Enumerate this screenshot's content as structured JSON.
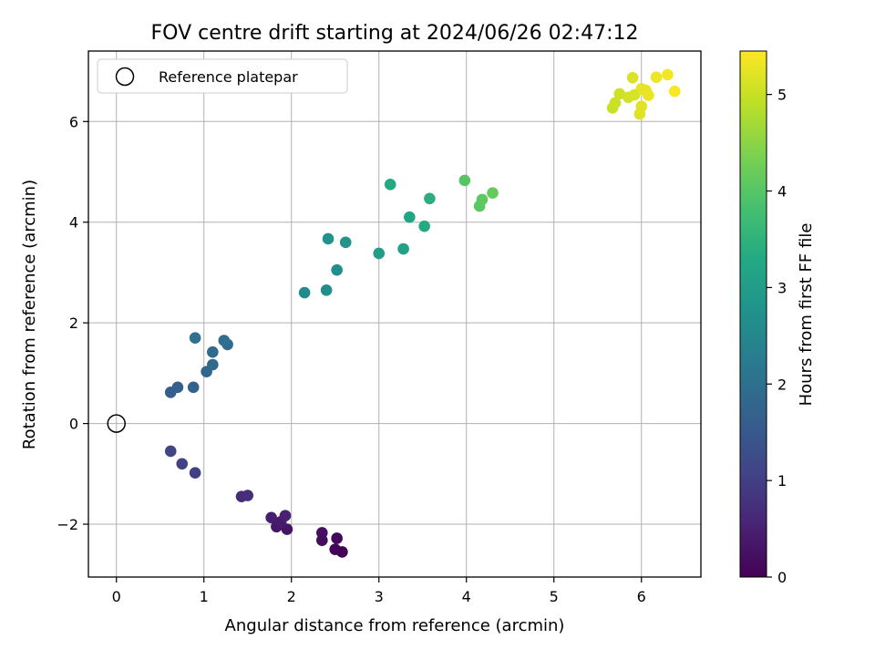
{
  "chart_data": {
    "type": "scatter",
    "title": "FOV centre drift starting at 2024/06/26 02:47:12",
    "xlabel": "Angular distance from reference (arcmin)",
    "ylabel": "Rotation from reference (arcmin)",
    "xlim": [
      -0.32,
      6.68
    ],
    "ylim": [
      -3.05,
      7.4
    ],
    "xticks": [
      0,
      1,
      2,
      3,
      4,
      5,
      6
    ],
    "yticks": [
      -2,
      0,
      2,
      4,
      6
    ],
    "grid": true,
    "legend": {
      "placement": "upper-left",
      "entries": [
        "Reference platepar"
      ]
    },
    "reference_point": {
      "x": 0,
      "y": 0,
      "label": "Reference platepar"
    },
    "colorbar": {
      "label": "Hours from first FF file",
      "range": [
        0,
        5.45
      ],
      "ticks": [
        0,
        1,
        2,
        3,
        4,
        5
      ],
      "colormap": "viridis"
    },
    "points": [
      {
        "x": 2.58,
        "y": -2.55,
        "c": 0.0
      },
      {
        "x": 2.5,
        "y": -2.5,
        "c": 0.05
      },
      {
        "x": 2.52,
        "y": -2.28,
        "c": 0.1
      },
      {
        "x": 2.35,
        "y": -2.32,
        "c": 0.15
      },
      {
        "x": 2.35,
        "y": -2.17,
        "c": 0.2
      },
      {
        "x": 1.95,
        "y": -2.1,
        "c": 0.3
      },
      {
        "x": 1.83,
        "y": -2.05,
        "c": 0.35
      },
      {
        "x": 1.88,
        "y": -1.95,
        "c": 0.4
      },
      {
        "x": 1.77,
        "y": -1.87,
        "c": 0.45
      },
      {
        "x": 1.93,
        "y": -1.83,
        "c": 0.5
      },
      {
        "x": 1.43,
        "y": -1.45,
        "c": 0.7
      },
      {
        "x": 1.5,
        "y": -1.43,
        "c": 0.72
      },
      {
        "x": 0.9,
        "y": -0.98,
        "c": 1.0
      },
      {
        "x": 0.75,
        "y": -0.8,
        "c": 1.05
      },
      {
        "x": 0.62,
        "y": -0.55,
        "c": 1.1
      },
      {
        "x": 0.62,
        "y": 0.62,
        "c": 1.6
      },
      {
        "x": 0.7,
        "y": 0.72,
        "c": 1.65
      },
      {
        "x": 0.88,
        "y": 0.72,
        "c": 1.7
      },
      {
        "x": 1.03,
        "y": 1.03,
        "c": 1.8
      },
      {
        "x": 1.1,
        "y": 1.17,
        "c": 1.85
      },
      {
        "x": 1.1,
        "y": 1.42,
        "c": 1.9
      },
      {
        "x": 1.27,
        "y": 1.57,
        "c": 1.95
      },
      {
        "x": 1.23,
        "y": 1.65,
        "c": 2.0
      },
      {
        "x": 0.9,
        "y": 1.7,
        "c": 2.0
      },
      {
        "x": 2.15,
        "y": 2.6,
        "c": 2.6
      },
      {
        "x": 2.4,
        "y": 2.65,
        "c": 2.65
      },
      {
        "x": 2.52,
        "y": 3.05,
        "c": 2.7
      },
      {
        "x": 2.42,
        "y": 3.67,
        "c": 2.75
      },
      {
        "x": 2.62,
        "y": 3.6,
        "c": 2.8
      },
      {
        "x": 3.0,
        "y": 3.38,
        "c": 3.0
      },
      {
        "x": 3.28,
        "y": 3.47,
        "c": 3.1
      },
      {
        "x": 3.35,
        "y": 4.1,
        "c": 3.2
      },
      {
        "x": 3.52,
        "y": 3.92,
        "c": 3.3
      },
      {
        "x": 3.13,
        "y": 4.75,
        "c": 3.3
      },
      {
        "x": 3.58,
        "y": 4.47,
        "c": 3.4
      },
      {
        "x": 3.98,
        "y": 4.83,
        "c": 4.0
      },
      {
        "x": 4.15,
        "y": 4.32,
        "c": 4.05
      },
      {
        "x": 4.18,
        "y": 4.45,
        "c": 4.1
      },
      {
        "x": 4.3,
        "y": 4.58,
        "c": 4.15
      },
      {
        "x": 5.67,
        "y": 6.27,
        "c": 5.0
      },
      {
        "x": 5.7,
        "y": 6.37,
        "c": 5.02
      },
      {
        "x": 5.75,
        "y": 6.55,
        "c": 5.05
      },
      {
        "x": 5.85,
        "y": 6.48,
        "c": 5.1
      },
      {
        "x": 5.92,
        "y": 6.53,
        "c": 5.12
      },
      {
        "x": 5.9,
        "y": 6.87,
        "c": 5.15
      },
      {
        "x": 5.98,
        "y": 6.15,
        "c": 5.18
      },
      {
        "x": 6.0,
        "y": 6.3,
        "c": 5.2
      },
      {
        "x": 6.0,
        "y": 6.65,
        "c": 5.22
      },
      {
        "x": 6.05,
        "y": 6.62,
        "c": 5.25
      },
      {
        "x": 6.08,
        "y": 6.52,
        "c": 5.28
      },
      {
        "x": 6.17,
        "y": 6.88,
        "c": 5.32
      },
      {
        "x": 6.3,
        "y": 6.93,
        "c": 5.36
      },
      {
        "x": 6.38,
        "y": 6.6,
        "c": 5.42
      }
    ]
  }
}
